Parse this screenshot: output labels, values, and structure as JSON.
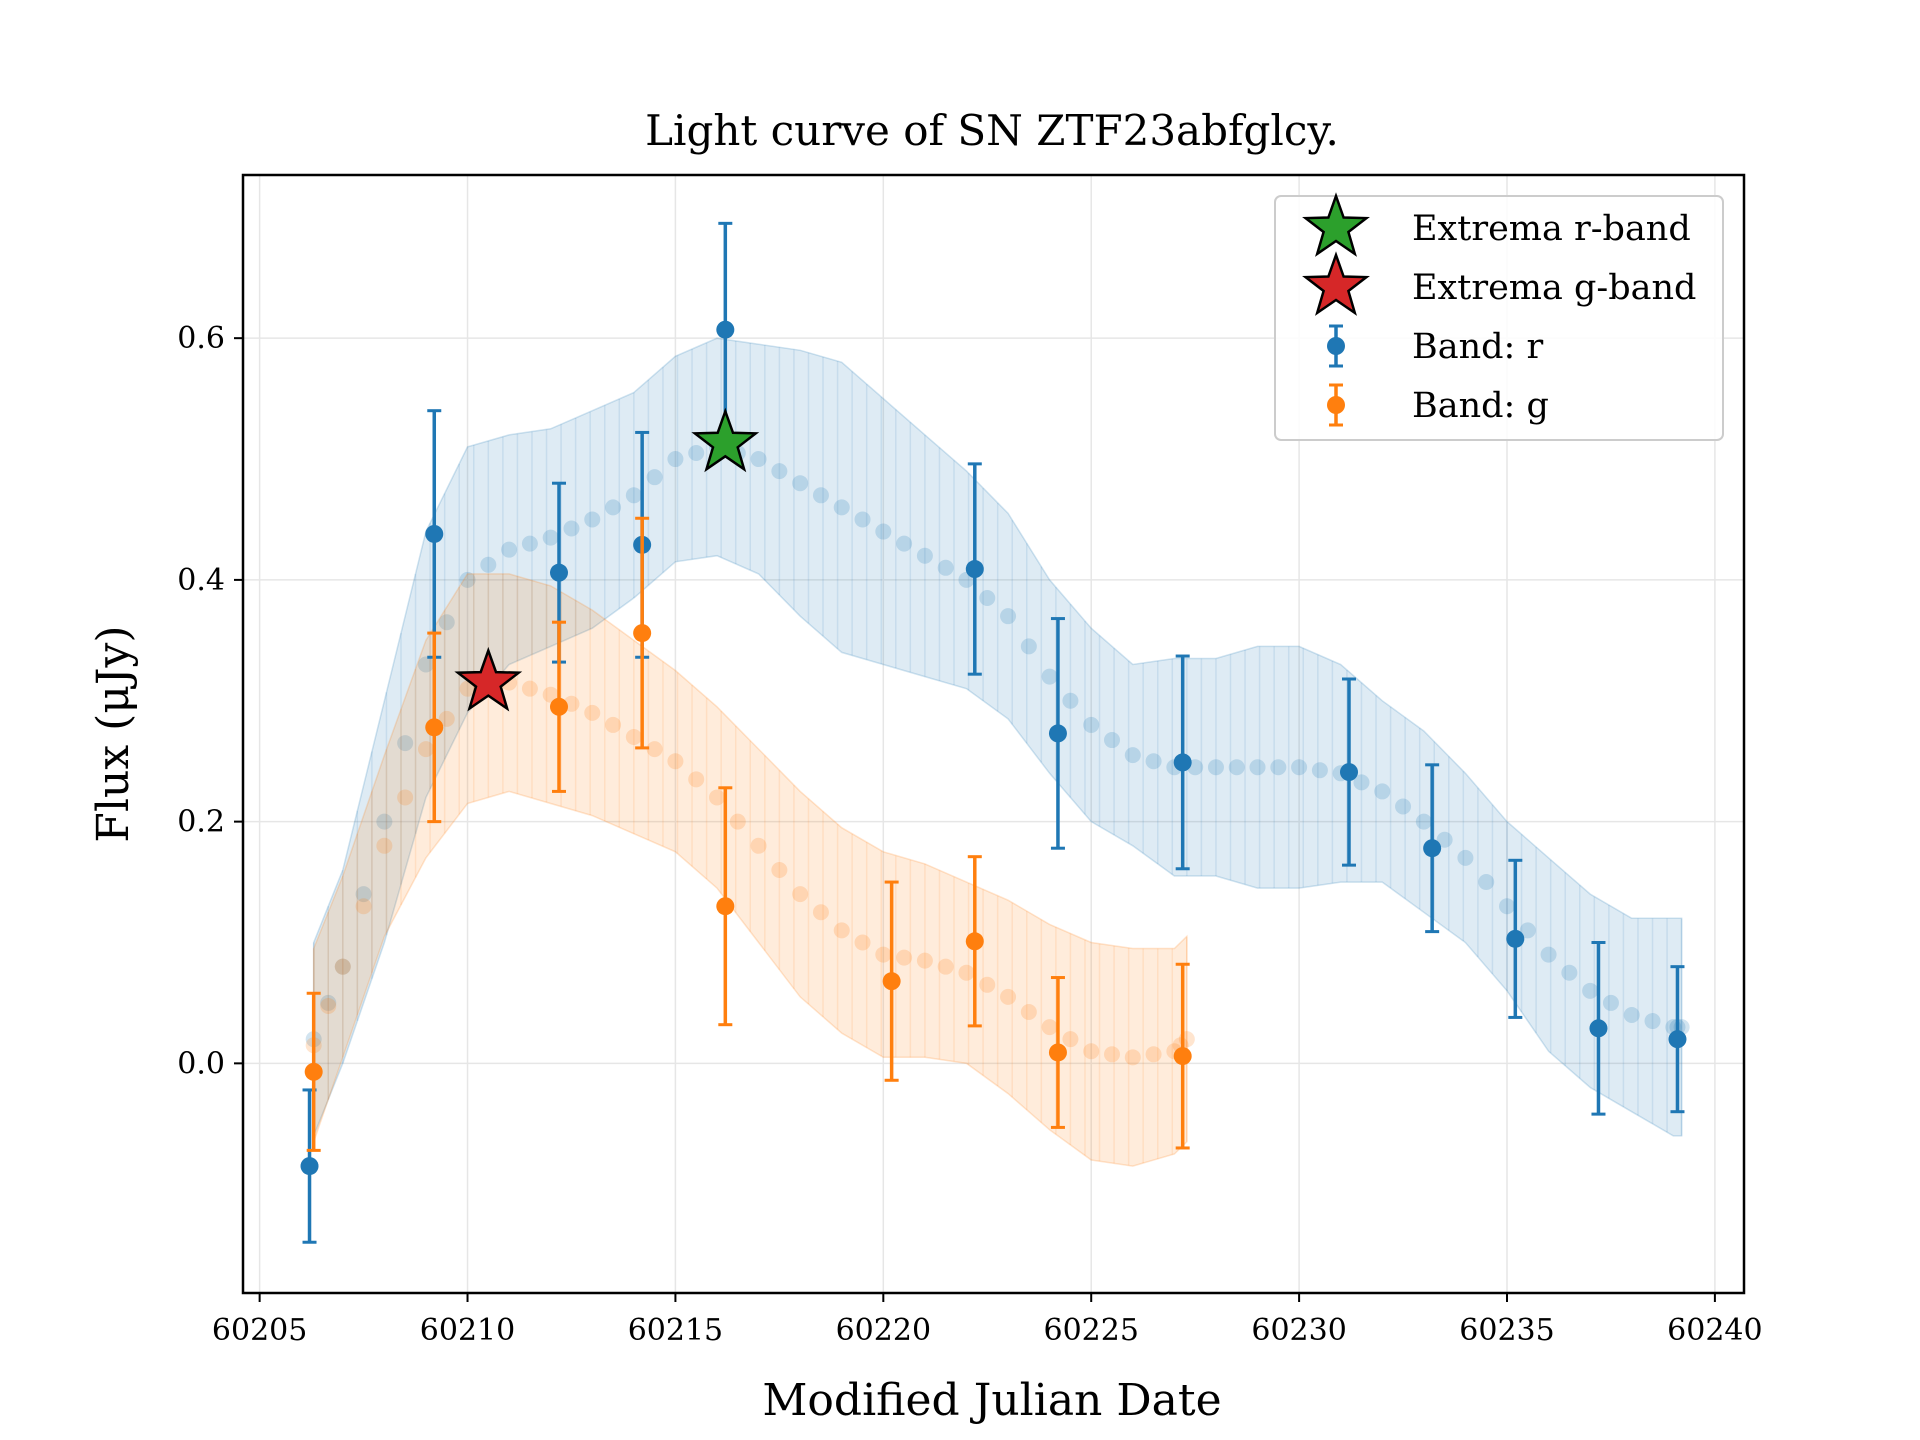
{
  "chart_data": {
    "type": "scatter",
    "title": "Light curve of SN ZTF23abfglcy.",
    "xlabel": "Modified Julian Date",
    "ylabel": "Flux (μJy)",
    "xlim": [
      60204.6,
      60240.7
    ],
    "ylim": [
      -0.19,
      0.735
    ],
    "x_ticks": [
      60205,
      60210,
      60215,
      60220,
      60225,
      60230,
      60235,
      60240
    ],
    "x_tick_labels": [
      "60205",
      "60210",
      "60215",
      "60220",
      "60225",
      "60230",
      "60235",
      "60240"
    ],
    "y_ticks": [
      0.0,
      0.2,
      0.4,
      0.6
    ],
    "y_tick_labels": [
      "0.0",
      "0.2",
      "0.4",
      "0.6"
    ],
    "grid": true,
    "legend_position": "top-right",
    "colors": {
      "r": "#1f77b4",
      "g": "#ff7f0e",
      "extrema_r": "#2ca02c",
      "extrema_g": "#d62728"
    },
    "series": [
      {
        "name": "Band: r",
        "color": "#1f77b4",
        "x": [
          60206.2,
          60209.2,
          60212.2,
          60214.2,
          60216.2,
          60222.2,
          60224.2,
          60227.2,
          60231.2,
          60233.2,
          60235.2,
          60237.2,
          60239.1
        ],
        "y": [
          -0.085,
          0.438,
          0.406,
          0.429,
          0.607,
          0.409,
          0.273,
          0.249,
          0.241,
          0.178,
          0.103,
          0.029,
          0.02
        ],
        "yerr": [
          0.063,
          0.102,
          0.074,
          0.093,
          0.088,
          0.087,
          0.095,
          0.088,
          0.077,
          0.069,
          0.065,
          0.071,
          0.06
        ]
      },
      {
        "name": "Band: g",
        "color": "#ff7f0e",
        "x": [
          60206.3,
          60209.2,
          60212.2,
          60214.2,
          60216.2,
          60220.2,
          60222.2,
          60224.2,
          60227.2
        ],
        "y": [
          -0.007,
          0.278,
          0.295,
          0.356,
          0.13,
          0.068,
          0.101,
          0.009,
          0.006
        ],
        "yerr": [
          0.065,
          0.078,
          0.07,
          0.095,
          0.098,
          0.082,
          0.07,
          0.062,
          0.076
        ]
      }
    ],
    "fits": [
      {
        "band": "r",
        "color": "#1f77b4",
        "x": [
          60206.3,
          60207.0,
          60208.0,
          60209.0,
          60210.0,
          60211.0,
          60212.0,
          60213.0,
          60214.0,
          60215.0,
          60216.0,
          60217.0,
          60218.0,
          60219.0,
          60220.0,
          60221.0,
          60222.0,
          60223.0,
          60224.0,
          60225.0,
          60226.0,
          60227.0,
          60228.0,
          60229.0,
          60230.0,
          60231.0,
          60232.0,
          60233.0,
          60234.0,
          60235.0,
          60236.0,
          60237.0,
          60238.0,
          60239.0,
          60239.2
        ],
        "y": [
          0.02,
          0.08,
          0.2,
          0.33,
          0.4,
          0.425,
          0.435,
          0.45,
          0.47,
          0.5,
          0.51,
          0.5,
          0.48,
          0.46,
          0.44,
          0.42,
          0.4,
          0.37,
          0.32,
          0.28,
          0.255,
          0.245,
          0.245,
          0.245,
          0.245,
          0.24,
          0.225,
          0.2,
          0.17,
          0.13,
          0.09,
          0.06,
          0.04,
          0.03,
          0.03
        ],
        "err": [
          0.08,
          0.08,
          0.1,
          0.11,
          0.11,
          0.095,
          0.09,
          0.09,
          0.085,
          0.085,
          0.09,
          0.095,
          0.11,
          0.12,
          0.11,
          0.1,
          0.09,
          0.085,
          0.08,
          0.08,
          0.075,
          0.09,
          0.09,
          0.1,
          0.1,
          0.09,
          0.075,
          0.075,
          0.07,
          0.07,
          0.08,
          0.08,
          0.08,
          0.09,
          0.09
        ]
      },
      {
        "band": "g",
        "color": "#ff7f0e",
        "x": [
          60206.3,
          60207.0,
          60208.0,
          60209.0,
          60210.0,
          60211.0,
          60212.0,
          60213.0,
          60214.0,
          60215.0,
          60216.0,
          60217.0,
          60218.0,
          60219.0,
          60220.0,
          60221.0,
          60222.0,
          60223.0,
          60224.0,
          60225.0,
          60226.0,
          60227.0,
          60227.3
        ],
        "y": [
          0.015,
          0.08,
          0.18,
          0.26,
          0.31,
          0.315,
          0.305,
          0.29,
          0.27,
          0.25,
          0.22,
          0.18,
          0.14,
          0.11,
          0.09,
          0.085,
          0.075,
          0.055,
          0.03,
          0.01,
          0.005,
          0.01,
          0.02
        ],
        "err": [
          0.08,
          0.075,
          0.075,
          0.09,
          0.095,
          0.09,
          0.09,
          0.085,
          0.08,
          0.075,
          0.075,
          0.08,
          0.085,
          0.085,
          0.085,
          0.08,
          0.075,
          0.08,
          0.085,
          0.09,
          0.09,
          0.085,
          0.085
        ]
      }
    ],
    "extrema": [
      {
        "name": "Extrema r-band",
        "x": 60216.2,
        "y": 0.513,
        "color": "#2ca02c"
      },
      {
        "name": "Extrema g-band",
        "x": 60210.5,
        "y": 0.315,
        "color": "#d62728"
      }
    ]
  }
}
